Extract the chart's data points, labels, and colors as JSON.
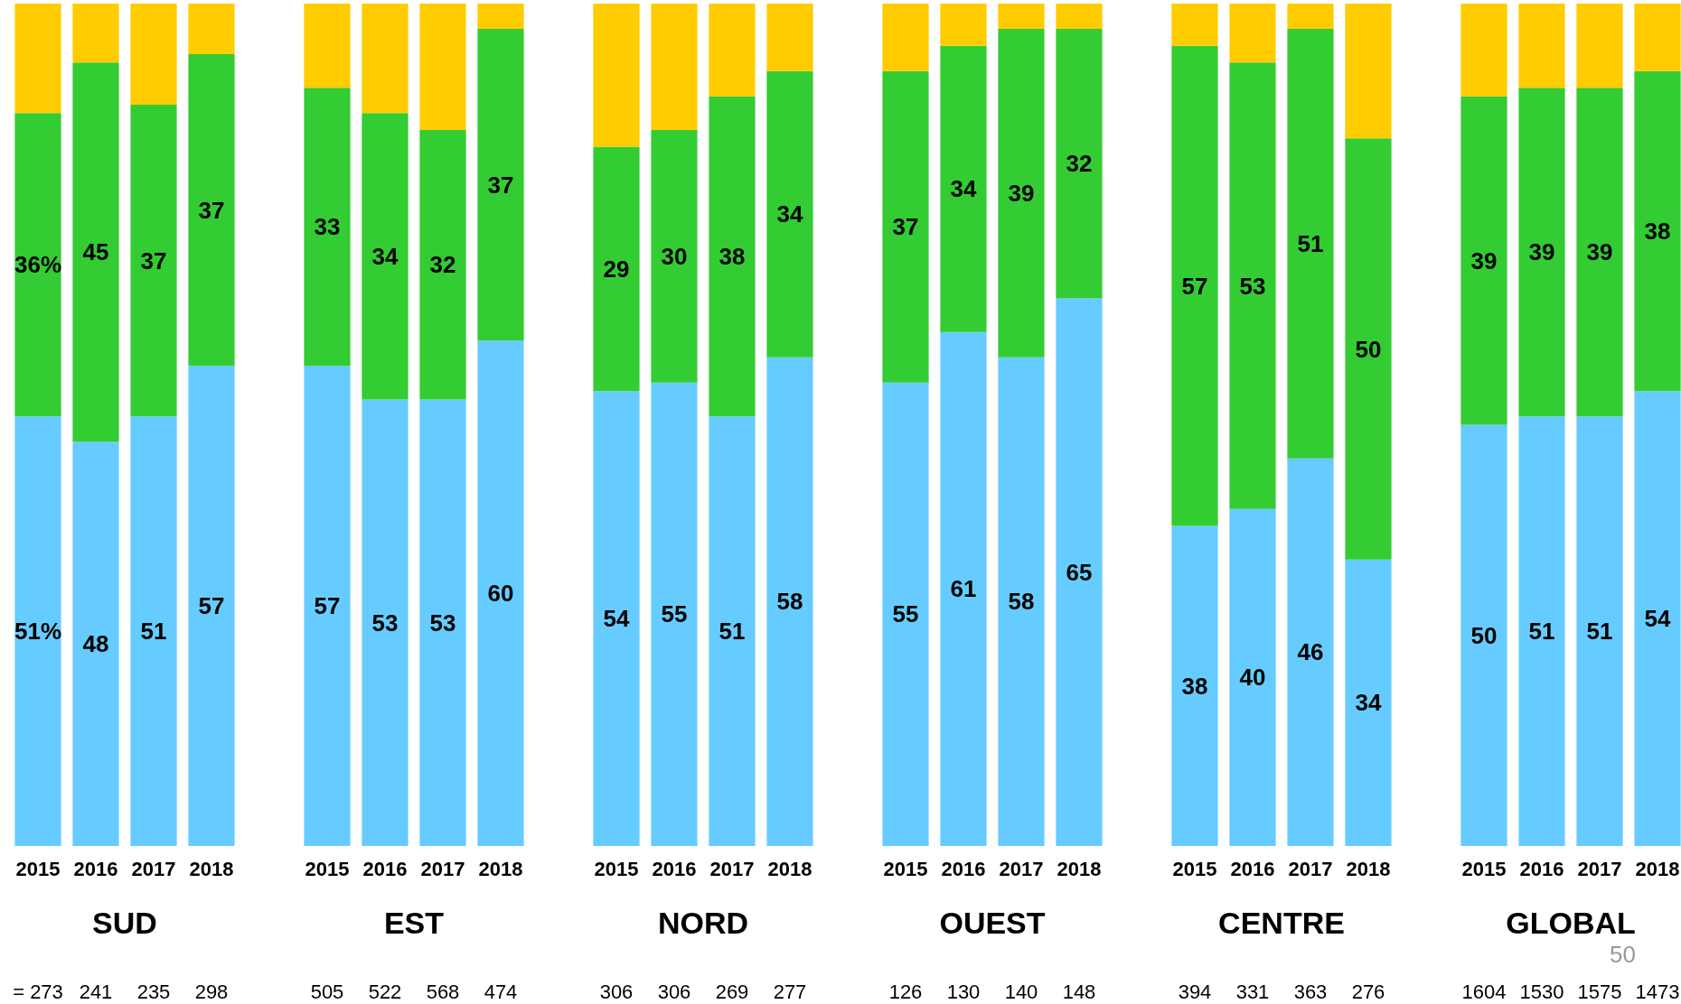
{
  "chart_data": [
    {
      "type": "bar",
      "title": "SUD",
      "categories": [
        "2015",
        "2016",
        "2017",
        "2018"
      ],
      "stacked": true,
      "ylim": [
        0,
        100
      ],
      "tick_labels": "x",
      "series": [
        {
          "color": "#66ccff",
          "values": [
            51,
            48,
            51,
            57
          ],
          "value_labels": [
            "51%",
            "48",
            "51",
            "57"
          ]
        },
        {
          "color": "#33cc33",
          "values": [
            36,
            45,
            37,
            37
          ],
          "value_labels": [
            "36%",
            "45",
            "37",
            "37"
          ]
        },
        {
          "color": "#ffcc00",
          "values": [
            13,
            7,
            12,
            6
          ]
        }
      ],
      "annotations": [
        "= 273",
        "241",
        "235",
        "298"
      ]
    },
    {
      "type": "bar",
      "title": "EST",
      "categories": [
        "2015",
        "2016",
        "2017",
        "2018"
      ],
      "stacked": true,
      "ylim": [
        0,
        100
      ],
      "tick_labels": "x",
      "series": [
        {
          "color": "#66ccff",
          "values": [
            57,
            53,
            53,
            60
          ],
          "value_labels": [
            "57",
            "53",
            "53",
            "60"
          ]
        },
        {
          "color": "#33cc33",
          "values": [
            33,
            34,
            32,
            37
          ],
          "value_labels": [
            "33",
            "34",
            "32",
            "37"
          ]
        },
        {
          "color": "#ffcc00",
          "values": [
            10,
            13,
            15,
            3
          ]
        }
      ],
      "annotations": [
        "505",
        "522",
        "568",
        "474"
      ]
    },
    {
      "type": "bar",
      "title": "NORD",
      "categories": [
        "2015",
        "2016",
        "2017",
        "2018"
      ],
      "stacked": true,
      "ylim": [
        0,
        100
      ],
      "tick_labels": "x",
      "series": [
        {
          "color": "#66ccff",
          "values": [
            54,
            55,
            51,
            58
          ],
          "value_labels": [
            "54",
            "55",
            "51",
            "58"
          ]
        },
        {
          "color": "#33cc33",
          "values": [
            29,
            30,
            38,
            34
          ],
          "value_labels": [
            "29",
            "30",
            "38",
            "34"
          ]
        },
        {
          "color": "#ffcc00",
          "values": [
            17,
            15,
            11,
            8
          ]
        }
      ],
      "annotations": [
        "306",
        "306",
        "269",
        "277"
      ]
    },
    {
      "type": "bar",
      "title": "OUEST",
      "categories": [
        "2015",
        "2016",
        "2017",
        "2018"
      ],
      "stacked": true,
      "ylim": [
        0,
        100
      ],
      "tick_labels": "x",
      "series": [
        {
          "color": "#66ccff",
          "values": [
            55,
            61,
            58,
            65
          ],
          "value_labels": [
            "55",
            "61",
            "58",
            "65"
          ]
        },
        {
          "color": "#33cc33",
          "values": [
            37,
            34,
            39,
            32
          ],
          "value_labels": [
            "37",
            "34",
            "39",
            "32"
          ]
        },
        {
          "color": "#ffcc00",
          "values": [
            8,
            5,
            3,
            3
          ]
        }
      ],
      "annotations": [
        "126",
        "130",
        "140",
        "148"
      ]
    },
    {
      "type": "bar",
      "title": "CENTRE",
      "categories": [
        "2015",
        "2016",
        "2017",
        "2018"
      ],
      "stacked": true,
      "ylim": [
        0,
        100
      ],
      "tick_labels": "x",
      "series": [
        {
          "color": "#66ccff",
          "values": [
            38,
            40,
            46,
            34
          ],
          "value_labels": [
            "38",
            "40",
            "46",
            "34"
          ]
        },
        {
          "color": "#33cc33",
          "values": [
            57,
            53,
            51,
            50
          ],
          "value_labels": [
            "57",
            "53",
            "51",
            "50"
          ]
        },
        {
          "color": "#ffcc00",
          "values": [
            5,
            7,
            3,
            16
          ]
        }
      ],
      "annotations": [
        "394",
        "331",
        "363",
        "276"
      ]
    },
    {
      "type": "bar",
      "title": "GLOBAL",
      "categories": [
        "2015",
        "2016",
        "2017",
        "2018"
      ],
      "stacked": true,
      "ylim": [
        0,
        100
      ],
      "tick_labels": "x",
      "series": [
        {
          "color": "#66ccff",
          "values": [
            50,
            51,
            51,
            54
          ],
          "value_labels": [
            "50",
            "51",
            "51",
            "54"
          ]
        },
        {
          "color": "#33cc33",
          "values": [
            39,
            39,
            39,
            38
          ],
          "value_labels": [
            "39",
            "39",
            "39",
            "38"
          ]
        },
        {
          "color": "#ffcc00",
          "values": [
            11,
            10,
            10,
            8
          ]
        }
      ],
      "annotations": [
        "1604",
        "1530",
        "1575",
        "1473",
        "50"
      ]
    }
  ]
}
